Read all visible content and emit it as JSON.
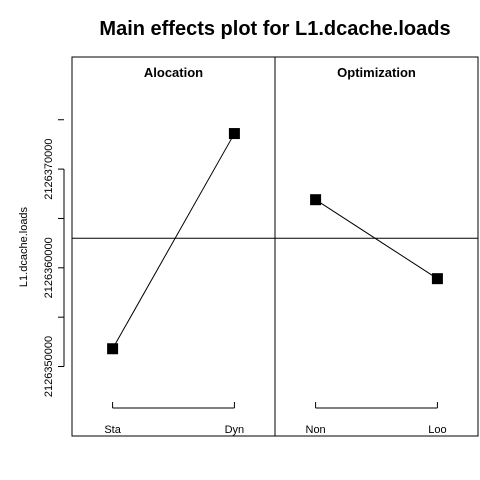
{
  "chart_data": {
    "type": "line",
    "title": "Main effects plot for L1.dcache.loads",
    "ylabel": "L1.dcache.loads",
    "ylim": [
      2126346000,
      2126377000
    ],
    "y_ticks": [
      2126350000,
      2126360000,
      2126370000
    ],
    "y_tick_labels": [
      "2126350000",
      "2126360000",
      "2126370000"
    ],
    "grand_mean": 2126363000,
    "grid": false,
    "panels": [
      {
        "title": "Alocation",
        "categories": [
          "Sta",
          "Dyn"
        ],
        "values": [
          2126351800,
          2126373600
        ]
      },
      {
        "title": "Optimization",
        "categories": [
          "Non",
          "Loo"
        ],
        "values": [
          2126366900,
          2126358900
        ]
      }
    ]
  }
}
